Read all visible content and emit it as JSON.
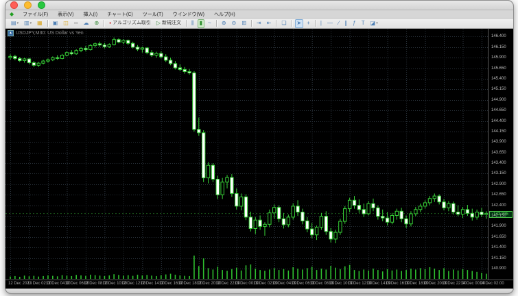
{
  "window": {
    "traffic_lights": [
      "close",
      "minimize",
      "zoom"
    ]
  },
  "menu": {
    "items": [
      {
        "id": "file",
        "label": "ファイル(F)"
      },
      {
        "id": "view",
        "label": "表示(V)"
      },
      {
        "id": "insert",
        "label": "挿入(I)"
      },
      {
        "id": "chart",
        "label": "チャート(C)"
      },
      {
        "id": "tools",
        "label": "ツール(T)"
      },
      {
        "id": "window",
        "label": "ウインドウ(W)"
      },
      {
        "id": "help",
        "label": "ヘルプ(H)"
      }
    ]
  },
  "toolbar": {
    "buttons": [
      {
        "name": "new-chart-button",
        "icon": "new-chart-icon",
        "glyph": "▤",
        "dropdown": true
      },
      {
        "name": "profiles-button",
        "icon": "profiles-icon",
        "glyph": "▥",
        "dropdown": true
      },
      {
        "name": "market-watch-button",
        "icon": "market-watch-icon",
        "glyph": "▦",
        "color": "#d9a520"
      },
      {
        "type": "sep"
      },
      {
        "name": "data-window-button",
        "icon": "data-window-icon",
        "glyph": "▣"
      },
      {
        "name": "toolbox-button",
        "icon": "toolbox-icon",
        "glyph": "◫",
        "color": "#d9a520"
      },
      {
        "name": "connection-button",
        "icon": "link-icon",
        "glyph": "∞",
        "color": "#9a9a9a"
      },
      {
        "name": "cloud-button",
        "icon": "cloud-icon",
        "glyph": "☁"
      },
      {
        "name": "web-button",
        "icon": "globe-icon",
        "glyph": "⊕",
        "color": "#3f8f3f"
      },
      {
        "type": "sep"
      },
      {
        "name": "algo-trading-button",
        "icon": "algo-trading-icon",
        "glyph": "▪",
        "color": "#cc3333",
        "label": "アルゴリズム取引"
      },
      {
        "name": "new-order-button",
        "icon": "new-order-icon",
        "glyph": "▷",
        "color": "#3f8f3f",
        "label": "新規注文"
      },
      {
        "type": "sep"
      },
      {
        "name": "bar-chart-button",
        "icon": "bar-chart-icon",
        "glyph": "⫼"
      },
      {
        "name": "candlestick-button",
        "icon": "candlestick-icon",
        "glyph": "▮",
        "color": "#2f8f2f",
        "state": "green"
      },
      {
        "name": "line-chart-button",
        "icon": "line-chart-icon",
        "glyph": "~"
      },
      {
        "type": "sep"
      },
      {
        "name": "zoom-in-button",
        "icon": "zoom-in-icon",
        "glyph": "⊕"
      },
      {
        "name": "zoom-out-button",
        "icon": "zoom-out-icon",
        "glyph": "⊖"
      },
      {
        "name": "tile-windows-button",
        "icon": "grid-icon",
        "glyph": "⊞"
      },
      {
        "type": "sep"
      },
      {
        "name": "auto-scroll-button",
        "icon": "auto-scroll-icon",
        "glyph": "⇥"
      },
      {
        "name": "chart-shift-button",
        "icon": "chart-shift-icon",
        "glyph": "⇤"
      },
      {
        "type": "sep"
      },
      {
        "name": "indicators-button",
        "icon": "indicators-icon",
        "glyph": "❏"
      },
      {
        "type": "sep"
      },
      {
        "name": "cursor-button",
        "icon": "cursor-icon",
        "glyph": "➤",
        "state": "blue"
      },
      {
        "name": "crosshair-button",
        "icon": "crosshair-icon",
        "glyph": "+"
      },
      {
        "type": "sep"
      },
      {
        "name": "vertical-line-button",
        "icon": "vertical-line-icon",
        "glyph": "|"
      },
      {
        "name": "horizontal-line-button",
        "icon": "horizontal-line-icon",
        "glyph": "—"
      },
      {
        "name": "trendline-button",
        "icon": "trendline-icon",
        "glyph": "∕"
      },
      {
        "name": "channel-button",
        "icon": "channel-icon",
        "glyph": "∥"
      },
      {
        "name": "fibonacci-button",
        "icon": "fibonacci-icon",
        "glyph": "ƒ"
      },
      {
        "name": "text-button",
        "icon": "text-icon",
        "glyph": "T"
      },
      {
        "name": "shapes-button",
        "icon": "shapes-icon",
        "glyph": "◪",
        "dropdown": true
      }
    ]
  },
  "chart": {
    "title": "USDJPY,M30: US Dollar vs Yen",
    "symbol_icon_glyph": "▲",
    "bid": "142.205",
    "colors": {
      "background": "#000000",
      "grid": "#2a333c",
      "candle_outline": "#38d438",
      "bull_fill": "#000000",
      "bear_fill": "#ffffff",
      "volume": "#2fbf2f",
      "axis_text": "#bdbdbd",
      "bid_accent": "#49c649"
    },
    "chart_data": {
      "type": "candlestick",
      "title": "USDJPY,M30: US Dollar vs Yen",
      "ylim": [
        140.77,
        146.52
      ],
      "grid": true,
      "price_labels": [
        "146.400",
        "146.150",
        "145.900",
        "145.650",
        "145.400",
        "145.150",
        "144.900",
        "144.650",
        "144.400",
        "144.150",
        "143.900",
        "143.650",
        "143.400",
        "143.150",
        "142.900",
        "142.650",
        "142.400",
        "142.150",
        "141.900",
        "141.650",
        "141.400",
        "141.150",
        "140.900"
      ],
      "time_labels": [
        "12 Dec 2023",
        "12 Dec 02:00",
        "12 Dec 04:00",
        "12 Dec 06:00",
        "12 Dec 08:00",
        "12 Dec 10:00",
        "12 Dec 12:00",
        "12 Dec 14:00",
        "12 Dec 16:00",
        "12 Dec 18:00",
        "12 Dec 20:00",
        "12 Dec 22:00",
        "13 Dec 00:00",
        "13 Dec 02:00",
        "13 Dec 04:00",
        "13 Dec 06:00",
        "13 Dec 08:00",
        "13 Dec 10:00",
        "13 Dec 12:00",
        "13 Dec 14:00",
        "13 Dec 16:00",
        "13 Dec 18:00",
        "13 Dec 20:00",
        "13 Dec 22:00",
        "14 Dec 00:00",
        "14 Dec 02:00"
      ],
      "candles": [
        [
          145.9,
          145.98,
          145.85,
          145.93
        ],
        [
          145.93,
          145.97,
          145.84,
          145.88
        ],
        [
          145.88,
          145.92,
          145.8,
          145.83
        ],
        [
          145.83,
          145.9,
          145.78,
          145.87
        ],
        [
          145.87,
          145.89,
          145.74,
          145.78
        ],
        [
          145.78,
          145.82,
          145.68,
          145.72
        ],
        [
          145.72,
          145.8,
          145.68,
          145.77
        ],
        [
          145.77,
          145.85,
          145.74,
          145.82
        ],
        [
          145.82,
          145.88,
          145.78,
          145.85
        ],
        [
          145.85,
          145.93,
          145.82,
          145.9
        ],
        [
          145.9,
          145.96,
          145.85,
          145.88
        ],
        [
          145.88,
          145.99,
          145.86,
          145.96
        ],
        [
          145.96,
          146.05,
          145.93,
          146.02
        ],
        [
          146.02,
          146.08,
          145.96,
          145.99
        ],
        [
          145.99,
          146.1,
          145.97,
          146.07
        ],
        [
          146.07,
          146.15,
          146.03,
          146.12
        ],
        [
          146.12,
          146.18,
          146.05,
          146.09
        ],
        [
          146.09,
          146.22,
          146.07,
          146.19
        ],
        [
          146.19,
          146.26,
          146.14,
          146.23
        ],
        [
          146.23,
          146.28,
          146.16,
          146.2
        ],
        [
          146.2,
          146.25,
          146.12,
          146.16
        ],
        [
          146.16,
          146.24,
          146.13,
          146.21
        ],
        [
          146.21,
          146.38,
          146.19,
          146.33
        ],
        [
          146.33,
          146.36,
          146.24,
          146.27
        ],
        [
          146.27,
          146.34,
          146.22,
          146.31
        ],
        [
          146.31,
          146.33,
          146.2,
          146.24
        ],
        [
          146.24,
          146.28,
          146.12,
          146.15
        ],
        [
          146.15,
          146.2,
          146.06,
          146.1
        ],
        [
          146.1,
          146.16,
          146.02,
          146.13
        ],
        [
          146.13,
          146.15,
          145.98,
          146.02
        ],
        [
          146.02,
          146.08,
          145.92,
          145.96
        ],
        [
          145.96,
          146.04,
          145.9,
          146.0
        ],
        [
          146.0,
          146.05,
          145.88,
          145.92
        ],
        [
          145.92,
          145.98,
          145.8,
          145.84
        ],
        [
          145.84,
          145.9,
          145.72,
          145.76
        ],
        [
          145.76,
          145.82,
          145.62,
          145.66
        ],
        [
          145.66,
          145.74,
          145.58,
          145.62
        ],
        [
          145.62,
          145.68,
          145.52,
          145.57
        ],
        [
          145.57,
          145.63,
          145.5,
          145.54
        ],
        [
          145.54,
          145.58,
          144.15,
          144.2
        ],
        [
          144.2,
          144.48,
          144.05,
          144.12
        ],
        [
          144.12,
          144.18,
          142.95,
          143.05
        ],
        [
          143.05,
          143.42,
          142.92,
          143.35
        ],
        [
          143.35,
          143.4,
          142.95,
          143.02
        ],
        [
          143.02,
          143.1,
          142.55,
          142.65
        ],
        [
          142.65,
          143.05,
          142.55,
          142.95
        ],
        [
          142.95,
          143.12,
          142.8,
          143.06
        ],
        [
          143.06,
          143.14,
          142.6,
          142.68
        ],
        [
          142.68,
          142.8,
          142.3,
          142.38
        ],
        [
          142.38,
          142.68,
          142.28,
          142.6
        ],
        [
          142.6,
          142.66,
          142.05,
          142.12
        ],
        [
          142.12,
          142.25,
          141.78,
          141.85
        ],
        [
          141.85,
          142.12,
          141.72,
          142.05
        ],
        [
          142.05,
          142.16,
          141.82,
          141.9
        ],
        [
          141.9,
          142.0,
          141.68,
          141.95
        ],
        [
          141.95,
          142.3,
          141.88,
          142.22
        ],
        [
          142.22,
          142.42,
          142.08,
          142.35
        ],
        [
          142.35,
          142.4,
          142.0,
          142.08
        ],
        [
          142.08,
          142.22,
          141.85,
          141.94
        ],
        [
          141.94,
          142.18,
          141.88,
          142.12
        ],
        [
          142.12,
          142.45,
          142.06,
          142.38
        ],
        [
          142.38,
          142.52,
          142.15,
          142.24
        ],
        [
          142.24,
          142.32,
          141.95,
          142.03
        ],
        [
          142.03,
          142.12,
          141.76,
          141.84
        ],
        [
          141.84,
          141.98,
          141.62,
          141.7
        ],
        [
          141.7,
          141.92,
          141.58,
          141.88
        ],
        [
          141.88,
          142.22,
          141.82,
          142.14
        ],
        [
          142.14,
          142.26,
          141.7,
          141.78
        ],
        [
          141.78,
          141.86,
          141.52,
          141.6
        ],
        [
          141.6,
          141.82,
          141.5,
          141.76
        ],
        [
          141.76,
          142.08,
          141.7,
          142.02
        ],
        [
          142.02,
          142.38,
          141.96,
          142.32
        ],
        [
          142.32,
          142.58,
          142.24,
          142.52
        ],
        [
          142.52,
          142.62,
          142.32,
          142.4
        ],
        [
          142.4,
          142.54,
          142.22,
          142.3
        ],
        [
          142.3,
          142.44,
          142.12,
          142.2
        ],
        [
          142.2,
          142.5,
          142.16,
          142.44
        ],
        [
          142.44,
          142.56,
          142.26,
          142.34
        ],
        [
          142.34,
          142.4,
          142.06,
          142.14
        ],
        [
          142.14,
          142.3,
          142.02,
          142.1
        ],
        [
          142.1,
          142.24,
          141.92,
          142.0
        ],
        [
          142.0,
          142.22,
          141.95,
          142.16
        ],
        [
          142.16,
          142.32,
          142.06,
          142.26
        ],
        [
          142.26,
          142.34,
          142.0,
          142.08
        ],
        [
          142.08,
          142.16,
          141.86,
          141.96
        ],
        [
          141.96,
          142.26,
          141.9,
          142.2
        ],
        [
          142.2,
          142.36,
          142.14,
          142.3
        ],
        [
          142.3,
          142.44,
          142.24,
          142.38
        ],
        [
          142.38,
          142.52,
          142.32,
          142.46
        ],
        [
          142.46,
          142.62,
          142.4,
          142.56
        ],
        [
          142.56,
          142.68,
          142.48,
          142.62
        ],
        [
          142.62,
          142.66,
          142.42,
          142.48
        ],
        [
          142.48,
          142.55,
          142.28,
          142.34
        ],
        [
          142.34,
          142.5,
          142.26,
          142.44
        ],
        [
          142.44,
          142.49,
          142.18,
          142.24
        ],
        [
          142.24,
          142.4,
          142.14,
          142.19
        ],
        [
          142.19,
          142.36,
          142.1,
          142.3
        ],
        [
          142.3,
          142.41,
          142.15,
          142.21
        ],
        [
          142.21,
          142.32,
          142.04,
          142.12
        ],
        [
          142.12,
          142.3,
          142.06,
          142.24
        ],
        [
          142.24,
          142.34,
          142.12,
          142.18
        ],
        [
          142.18,
          142.26,
          142.08,
          142.21
        ]
      ],
      "volumes": [
        10,
        12,
        9,
        14,
        11,
        13,
        10,
        12,
        15,
        13,
        11,
        16,
        14,
        12,
        17,
        15,
        13,
        18,
        16,
        14,
        12,
        15,
        20,
        17,
        14,
        16,
        13,
        18,
        15,
        17,
        14,
        12,
        16,
        19,
        22,
        18,
        15,
        13,
        12,
        100,
        55,
        88,
        46,
        40,
        52,
        38,
        35,
        42,
        48,
        36,
        58,
        62,
        44,
        38,
        35,
        40,
        46,
        38,
        42,
        36,
        50,
        44,
        40,
        46,
        52,
        38,
        44,
        40,
        56,
        48,
        42,
        54,
        60,
        38,
        34,
        40,
        36,
        44,
        38,
        32,
        42,
        36,
        40,
        34,
        38,
        44,
        40,
        46,
        42,
        50,
        44,
        38,
        46,
        34,
        40,
        36,
        42,
        38,
        34,
        30,
        26,
        22
      ],
      "current_bid": 142.205
    }
  }
}
